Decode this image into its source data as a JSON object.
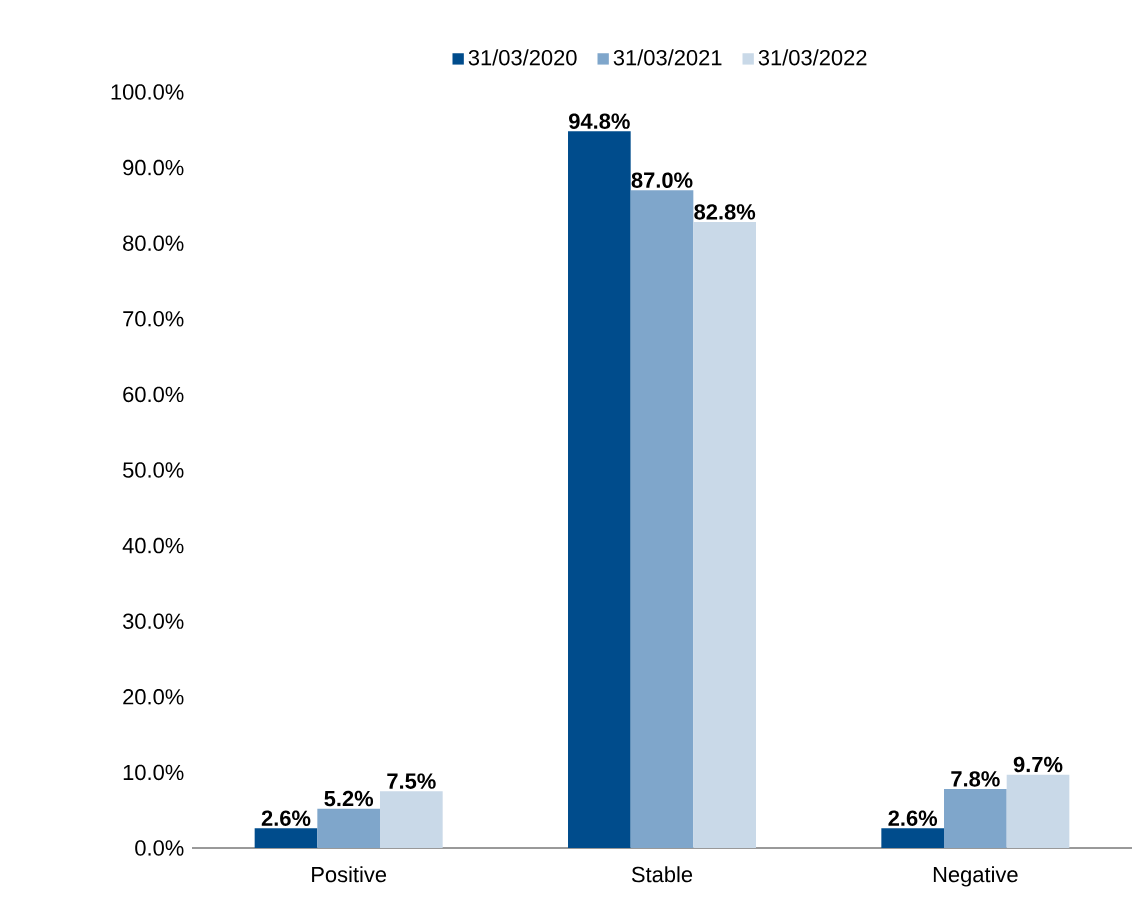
{
  "chart_data": {
    "type": "bar",
    "categories": [
      "Positive",
      "Stable",
      "Negative"
    ],
    "series": [
      {
        "name": "31/03/2020",
        "color": "#004c8c",
        "values": [
          2.6,
          94.8,
          2.6
        ],
        "value_labels": [
          "2.6%",
          "94.8%",
          "2.6%"
        ]
      },
      {
        "name": "31/03/2021",
        "color": "#7fa6cb",
        "values": [
          5.2,
          87.0,
          7.8
        ],
        "value_labels": [
          "5.2%",
          "87.0%",
          "7.8%"
        ]
      },
      {
        "name": "31/03/2022",
        "color": "#c9d9e8",
        "values": [
          7.5,
          82.8,
          9.7
        ],
        "value_labels": [
          "7.5%",
          "82.8%",
          "9.7%"
        ]
      }
    ],
    "ylim": [
      0,
      100
    ],
    "yticks": [
      {
        "value": 0,
        "label": "0.0%"
      },
      {
        "value": 10,
        "label": "10.0%"
      },
      {
        "value": 20,
        "label": "20.0%"
      },
      {
        "value": 30,
        "label": "30.0%"
      },
      {
        "value": 40,
        "label": "40.0%"
      },
      {
        "value": 50,
        "label": "50.0%"
      },
      {
        "value": 60,
        "label": "60.0%"
      },
      {
        "value": 70,
        "label": "70.0%"
      },
      {
        "value": 80,
        "label": "80.0%"
      },
      {
        "value": 90,
        "label": "90.0%"
      },
      {
        "value": 100,
        "label": "100.0%"
      }
    ],
    "legend": "top",
    "grid": false
  }
}
